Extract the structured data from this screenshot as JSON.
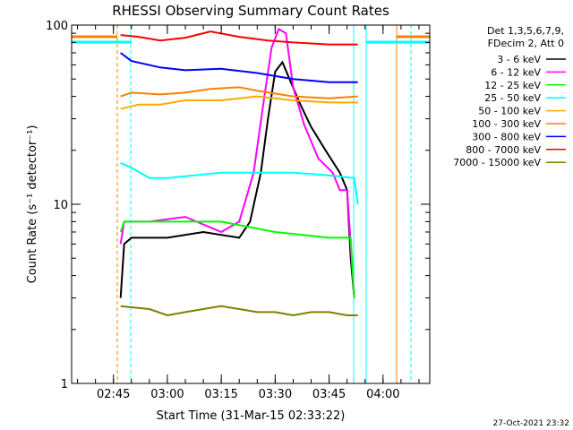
{
  "chart_data": {
    "type": "line",
    "title": "RHESSI Observing Summary Count Rates",
    "xlabel": "Start Time (31-Mar-15 02:33:22)",
    "ylabel": "Count Rate (s⁻¹ detector⁻¹)",
    "y_scale": "log",
    "ylim": [
      1,
      100
    ],
    "xlim": [
      "02:33:22",
      "04:13:00"
    ],
    "x_ticks": [
      "02:45",
      "03:00",
      "03:15",
      "03:30",
      "03:45",
      "04:00"
    ],
    "y_ticks": [
      "1",
      "10",
      "100"
    ],
    "info_lines": [
      "Det 1,3,5,6,7,9,",
      "FDecim 2, Att 0"
    ],
    "timestamp": "27-Oct-2021 23:32",
    "legend_position": "right",
    "series": [
      {
        "name": "3 - 6 keV",
        "color": "#000000",
        "points": [
          [
            "02:47",
            3
          ],
          [
            "02:48",
            6
          ],
          [
            "02:50",
            6.5
          ],
          [
            "03:00",
            6.5
          ],
          [
            "03:10",
            7
          ],
          [
            "03:20",
            6.5
          ],
          [
            "03:23",
            8
          ],
          [
            "03:26",
            15
          ],
          [
            "03:28",
            30
          ],
          [
            "03:30",
            55
          ],
          [
            "03:32",
            62
          ],
          [
            "03:34",
            50
          ],
          [
            "03:37",
            36
          ],
          [
            "03:40",
            27
          ],
          [
            "03:44",
            20
          ],
          [
            "03:48",
            15
          ],
          [
            "03:50",
            12
          ],
          [
            "03:51",
            5
          ],
          [
            "03:52",
            3
          ]
        ]
      },
      {
        "name": "6 - 12 keV",
        "color": "#ff00ff",
        "points": [
          [
            "02:47",
            6
          ],
          [
            "02:48",
            8
          ],
          [
            "02:55",
            8
          ],
          [
            "03:05",
            8.5
          ],
          [
            "03:15",
            7
          ],
          [
            "03:20",
            8
          ],
          [
            "03:24",
            15
          ],
          [
            "03:27",
            40
          ],
          [
            "03:29",
            75
          ],
          [
            "03:31",
            95
          ],
          [
            "03:33",
            90
          ],
          [
            "03:35",
            45
          ],
          [
            "03:38",
            28
          ],
          [
            "03:42",
            18
          ],
          [
            "03:46",
            15
          ],
          [
            "03:48",
            12
          ],
          [
            "03:50",
            12
          ],
          [
            "03:52",
            3
          ]
        ]
      },
      {
        "name": "12 - 25 keV",
        "color": "#00ff00",
        "points": [
          [
            "02:47",
            7
          ],
          [
            "02:48",
            8
          ],
          [
            "03:00",
            8
          ],
          [
            "03:15",
            8
          ],
          [
            "03:30",
            7
          ],
          [
            "03:45",
            6.5
          ],
          [
            "03:51",
            6.5
          ],
          [
            "03:52",
            3
          ]
        ]
      },
      {
        "name": "25 - 50 keV",
        "color": "#00ffff",
        "points": [
          [
            "02:47",
            17
          ],
          [
            "02:50",
            16
          ],
          [
            "02:55",
            14
          ],
          [
            "03:00",
            14
          ],
          [
            "03:15",
            15
          ],
          [
            "03:25",
            15
          ],
          [
            "03:35",
            15
          ],
          [
            "03:45",
            14.5
          ],
          [
            "03:52",
            14
          ],
          [
            "03:53",
            10
          ]
        ]
      },
      {
        "name": "50 - 100 keV",
        "color": "#ffaa00",
        "points": [
          [
            "02:47",
            34
          ],
          [
            "02:52",
            36
          ],
          [
            "02:58",
            36
          ],
          [
            "03:05",
            38
          ],
          [
            "03:15",
            38
          ],
          [
            "03:25",
            40
          ],
          [
            "03:35",
            38
          ],
          [
            "03:45",
            37
          ],
          [
            "03:53",
            37
          ]
        ]
      },
      {
        "name": "100 - 300 keV",
        "color": "#ff8000",
        "points": [
          [
            "02:47",
            40
          ],
          [
            "02:50",
            42
          ],
          [
            "02:58",
            41
          ],
          [
            "03:05",
            42
          ],
          [
            "03:12",
            44
          ],
          [
            "03:20",
            45
          ],
          [
            "03:25",
            43
          ],
          [
            "03:35",
            40
          ],
          [
            "03:45",
            39
          ],
          [
            "03:53",
            40
          ]
        ]
      },
      {
        "name": "300 - 800 keV",
        "color": "#0000ff",
        "points": [
          [
            "02:47",
            70
          ],
          [
            "02:50",
            63
          ],
          [
            "02:58",
            58
          ],
          [
            "03:05",
            56
          ],
          [
            "03:15",
            57
          ],
          [
            "03:25",
            54
          ],
          [
            "03:35",
            50
          ],
          [
            "03:45",
            48
          ],
          [
            "03:53",
            48
          ]
        ]
      },
      {
        "name": "800 - 7000 keV",
        "color": "#ff0000",
        "points": [
          [
            "02:47",
            88
          ],
          [
            "02:52",
            86
          ],
          [
            "02:58",
            82
          ],
          [
            "03:05",
            85
          ],
          [
            "03:12",
            92
          ],
          [
            "03:20",
            86
          ],
          [
            "03:28",
            82
          ],
          [
            "03:35",
            80
          ],
          [
            "03:45",
            78
          ],
          [
            "03:53",
            78
          ]
        ]
      },
      {
        "name": "7000 - 15000 keV",
        "color": "#808000",
        "points": [
          [
            "02:47",
            2.7
          ],
          [
            "02:55",
            2.6
          ],
          [
            "03:00",
            2.4
          ],
          [
            "03:05",
            2.5
          ],
          [
            "03:10",
            2.6
          ],
          [
            "03:15",
            2.7
          ],
          [
            "03:20",
            2.6
          ],
          [
            "03:25",
            2.5
          ],
          [
            "03:30",
            2.5
          ],
          [
            "03:35",
            2.4
          ],
          [
            "03:40",
            2.5
          ],
          [
            "03:45",
            2.5
          ],
          [
            "03:50",
            2.4
          ],
          [
            "03:53",
            2.4
          ]
        ]
      }
    ]
  }
}
